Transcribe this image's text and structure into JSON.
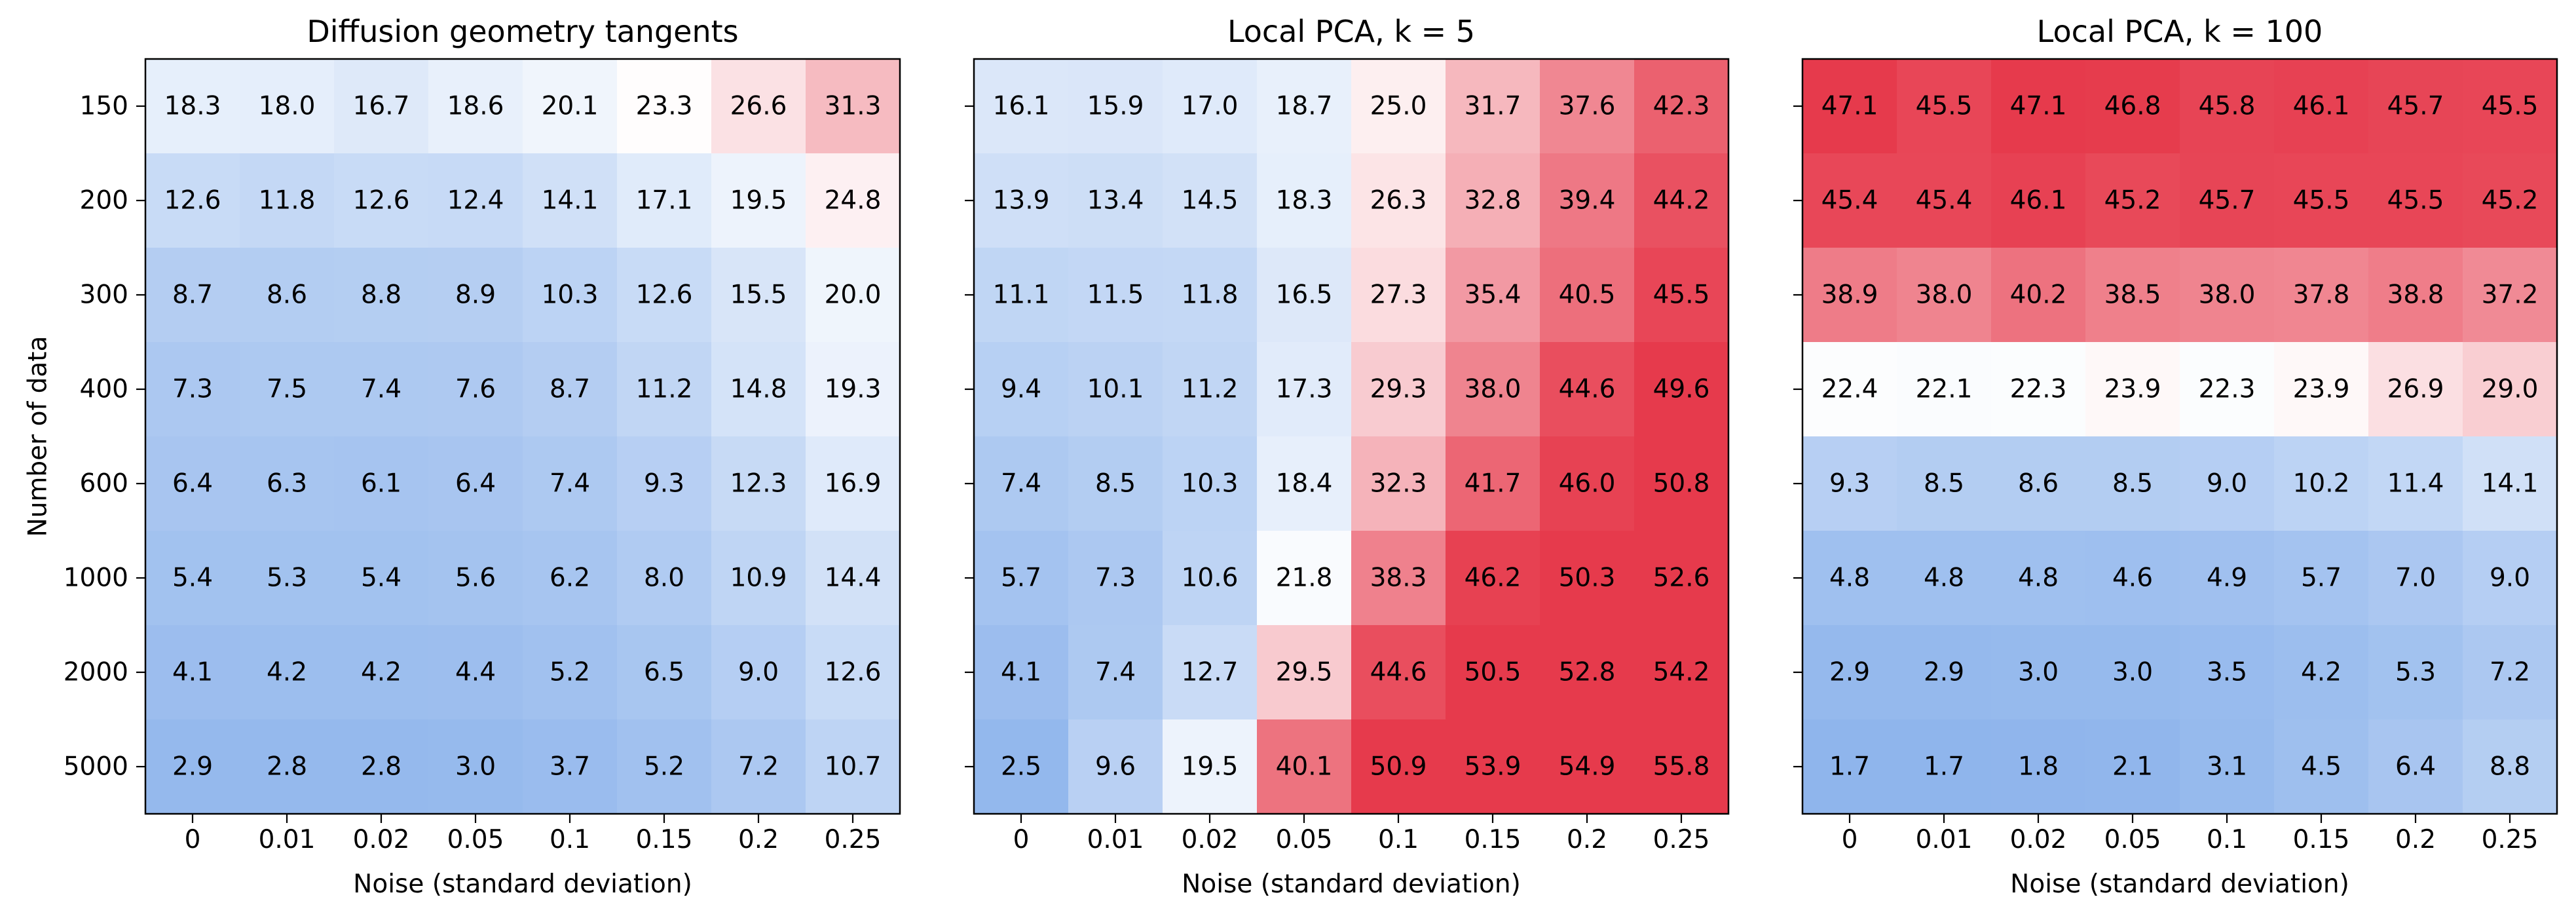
{
  "chart_data": [
    {
      "type": "heatmap",
      "title": "Diffusion geometry tangents",
      "xlabel": "Noise (standard deviation)",
      "ylabel": "Number of data",
      "x_categories": [
        "0",
        "0.01",
        "0.02",
        "0.05",
        "0.1",
        "0.15",
        "0.2",
        "0.25"
      ],
      "y_categories": [
        "150",
        "200",
        "300",
        "400",
        "600",
        "1000",
        "2000",
        "5000"
      ],
      "values": [
        [
          18.3,
          18.0,
          16.7,
          18.6,
          20.1,
          23.3,
          26.6,
          31.3
        ],
        [
          12.6,
          11.8,
          12.6,
          12.4,
          14.1,
          17.1,
          19.5,
          24.8
        ],
        [
          8.7,
          8.6,
          8.8,
          8.9,
          10.3,
          12.6,
          15.5,
          20.0
        ],
        [
          7.3,
          7.5,
          7.4,
          7.6,
          8.7,
          11.2,
          14.8,
          19.3
        ],
        [
          6.4,
          6.3,
          6.1,
          6.4,
          7.4,
          9.3,
          12.3,
          16.9
        ],
        [
          5.4,
          5.3,
          5.4,
          5.6,
          6.2,
          8.0,
          10.9,
          14.4
        ],
        [
          4.1,
          4.2,
          4.2,
          4.4,
          5.2,
          6.5,
          9.0,
          12.6
        ],
        [
          2.9,
          2.8,
          2.8,
          3.0,
          3.7,
          5.2,
          7.2,
          10.7
        ]
      ]
    },
    {
      "type": "heatmap",
      "title": "Local PCA, k = 5",
      "xlabel": "Noise (standard deviation)",
      "ylabel": "",
      "x_categories": [
        "0",
        "0.01",
        "0.02",
        "0.05",
        "0.1",
        "0.15",
        "0.2",
        "0.25"
      ],
      "y_categories": [
        "150",
        "200",
        "300",
        "400",
        "600",
        "1000",
        "2000",
        "5000"
      ],
      "values": [
        [
          16.1,
          15.9,
          17.0,
          18.7,
          25.0,
          31.7,
          37.6,
          42.3
        ],
        [
          13.9,
          13.4,
          14.5,
          18.3,
          26.3,
          32.8,
          39.4,
          44.2
        ],
        [
          11.1,
          11.5,
          11.8,
          16.5,
          27.3,
          35.4,
          40.5,
          45.5
        ],
        [
          9.4,
          10.1,
          11.2,
          17.3,
          29.3,
          38.0,
          44.6,
          49.6
        ],
        [
          7.4,
          8.5,
          10.3,
          18.4,
          32.3,
          41.7,
          46.0,
          50.8
        ],
        [
          5.7,
          7.3,
          10.6,
          21.8,
          38.3,
          46.2,
          50.3,
          52.6
        ],
        [
          4.1,
          7.4,
          12.7,
          29.5,
          44.6,
          50.5,
          52.8,
          54.2
        ],
        [
          2.5,
          9.6,
          19.5,
          40.1,
          50.9,
          53.9,
          54.9,
          55.8
        ]
      ]
    },
    {
      "type": "heatmap",
      "title": "Local PCA, k = 100",
      "xlabel": "Noise (standard deviation)",
      "ylabel": "",
      "x_categories": [
        "0",
        "0.01",
        "0.02",
        "0.05",
        "0.1",
        "0.15",
        "0.2",
        "0.25"
      ],
      "y_categories": [
        "150",
        "200",
        "300",
        "400",
        "600",
        "1000",
        "2000",
        "5000"
      ],
      "values": [
        [
          47.1,
          45.5,
          47.1,
          46.8,
          45.8,
          46.1,
          45.7,
          45.5
        ],
        [
          45.4,
          45.4,
          46.1,
          45.2,
          45.7,
          45.5,
          45.5,
          45.2
        ],
        [
          38.9,
          38.0,
          40.2,
          38.5,
          38.0,
          37.8,
          38.8,
          37.2
        ],
        [
          22.4,
          22.1,
          22.3,
          23.9,
          22.3,
          23.9,
          26.9,
          29.0
        ],
        [
          9.3,
          8.5,
          8.6,
          8.5,
          9.0,
          10.2,
          11.4,
          14.1
        ],
        [
          4.8,
          4.8,
          4.8,
          4.6,
          4.9,
          5.7,
          7.0,
          9.0
        ],
        [
          2.9,
          2.9,
          3.0,
          3.0,
          3.5,
          4.2,
          5.3,
          7.2
        ],
        [
          1.7,
          1.7,
          1.8,
          2.1,
          3.1,
          4.5,
          6.4,
          8.8
        ]
      ]
    }
  ],
  "colors": {
    "low": "#8fb5ec",
    "mid": "#ffffff",
    "high": "#e63a4c",
    "text": "#000000",
    "axis": "#000000"
  }
}
